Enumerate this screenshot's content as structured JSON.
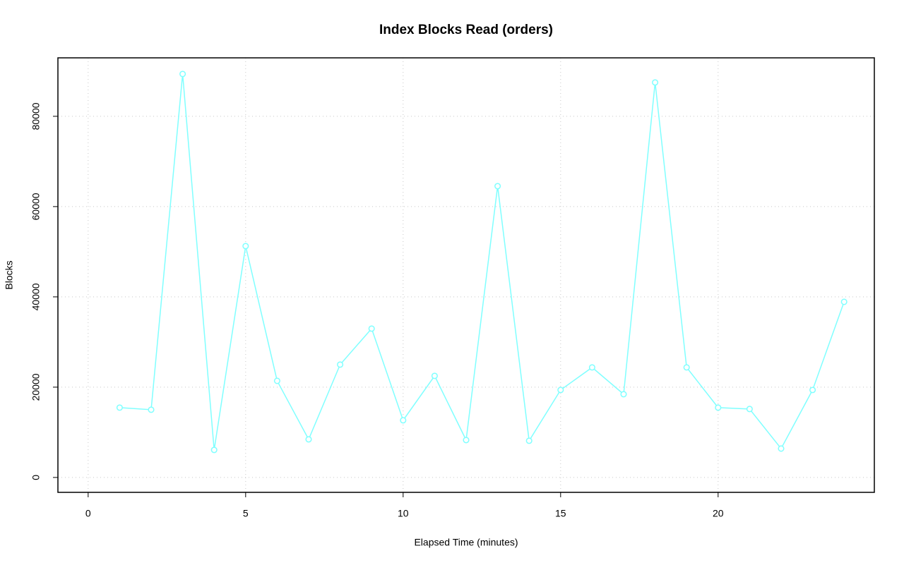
{
  "chart_data": {
    "type": "line",
    "title": "Index Blocks Read (orders)",
    "x_label": "Elapsed Time (minutes)",
    "y_label": "Blocks",
    "x": [
      1,
      2,
      3,
      4,
      5,
      6,
      7,
      8,
      9,
      10,
      11,
      12,
      13,
      14,
      15,
      16,
      17,
      18,
      19,
      20,
      21,
      22,
      23,
      24
    ],
    "series": [
      {
        "color": "#80ffff",
        "values": [
          15470,
          15000,
          89375,
          6094,
          51250,
          21400,
          8440,
          25000,
          32970,
          12660,
          22500,
          8280,
          64530,
          8125,
          19375,
          24375,
          18440,
          87500,
          24375,
          15470,
          15160,
          6400,
          19375,
          38900
        ]
      }
    ],
    "xlim": [
      -0.96,
      24.96
    ],
    "xticks": [
      0,
      5,
      10,
      15,
      20
    ],
    "ylim": [
      -3300,
      92950
    ],
    "yticks": [
      0,
      20000,
      40000,
      60000,
      80000
    ],
    "grid": true
  }
}
